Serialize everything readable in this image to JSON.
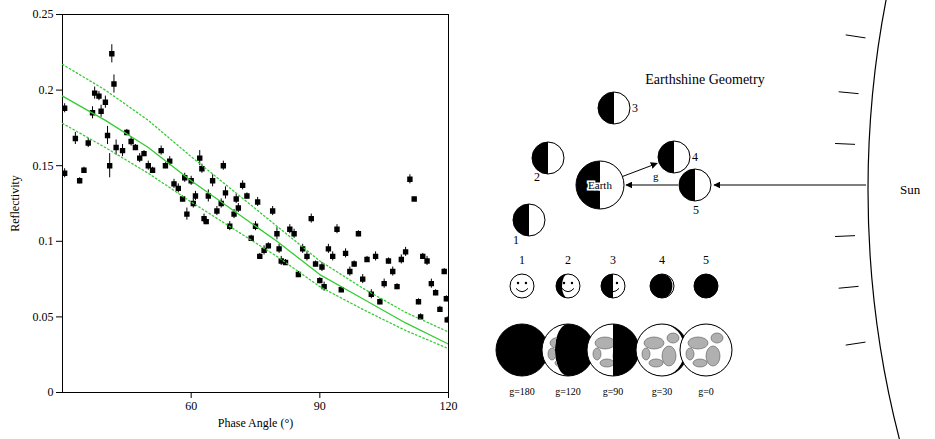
{
  "chart_data": {
    "type": "scatter",
    "xlabel": "Phase Angle (°)",
    "ylabel": "Reflectivity",
    "xlim": [
      30,
      120
    ],
    "xticks": [
      60,
      90,
      120
    ],
    "ylim": [
      0,
      0.25
    ],
    "yticks": [
      0,
      0.05,
      0.1,
      0.15,
      0.2,
      0.25
    ],
    "series": [
      {
        "type": "scatter",
        "color": "#000000",
        "marker": "square",
        "x": [
          30.5,
          30.5,
          33,
          34,
          35,
          36,
          37,
          37.5,
          38.5,
          39,
          40,
          40.5,
          41,
          41.5,
          42,
          42.5,
          44,
          45,
          46,
          47,
          48,
          49,
          50,
          51,
          53,
          54,
          55,
          56,
          57,
          58,
          58.5,
          59,
          60,
          60.5,
          61,
          62,
          62.5,
          63,
          63.5,
          64,
          65,
          66,
          67,
          67.5,
          68,
          69,
          70,
          70.5,
          71,
          72,
          73,
          74,
          75,
          75.5,
          76,
          77,
          78,
          79,
          80,
          80.5,
          81,
          82,
          83,
          84,
          85,
          86,
          87,
          88,
          89,
          90,
          90.5,
          91,
          92,
          93,
          94,
          95,
          96,
          97,
          98,
          99,
          100,
          101,
          102,
          103,
          104,
          105,
          106,
          107,
          108,
          109,
          110,
          111,
          112,
          113,
          113.5,
          114,
          115,
          116,
          117,
          118,
          119,
          119.5,
          119.7
        ],
        "values": [
          0.145,
          0.188,
          0.168,
          0.14,
          0.147,
          0.165,
          0.185,
          0.198,
          0.196,
          0.186,
          0.192,
          0.17,
          0.15,
          0.224,
          0.204,
          0.162,
          0.16,
          0.172,
          0.166,
          0.162,
          0.155,
          0.158,
          0.15,
          0.147,
          0.16,
          0.15,
          0.153,
          0.138,
          0.135,
          0.128,
          0.142,
          0.118,
          0.14,
          0.125,
          0.13,
          0.155,
          0.148,
          0.115,
          0.113,
          0.13,
          0.14,
          0.12,
          0.125,
          0.15,
          0.132,
          0.11,
          0.118,
          0.128,
          0.122,
          0.137,
          0.13,
          0.102,
          0.11,
          0.126,
          0.09,
          0.094,
          0.097,
          0.12,
          0.105,
          0.095,
          0.087,
          0.086,
          0.108,
          0.105,
          0.078,
          0.095,
          0.09,
          0.115,
          0.085,
          0.074,
          0.083,
          0.07,
          0.095,
          0.09,
          0.108,
          0.068,
          0.092,
          0.08,
          0.085,
          0.105,
          0.075,
          0.088,
          0.065,
          0.09,
          0.06,
          0.072,
          0.087,
          0.08,
          0.07,
          0.088,
          0.093,
          0.141,
          0.128,
          0.06,
          0.05,
          0.09,
          0.087,
          0.072,
          0.066,
          0.055,
          0.08,
          0.062,
          0.048
        ],
        "errors": [
          0.003,
          0.003,
          0.004,
          0.002,
          0.002,
          0.003,
          0.004,
          0.004,
          0.003,
          0.004,
          0.004,
          0.006,
          0.008,
          0.006,
          0.006,
          0.005,
          0.004,
          0.002,
          0.003,
          0.002,
          0.003,
          0.002,
          0.003,
          0.002,
          0.003,
          0.002,
          0.003,
          0.003,
          0.003,
          0.002,
          0.003,
          0.004,
          0.003,
          0.003,
          0.003,
          0.005,
          0.003,
          0.003,
          0.002,
          0.004,
          0.004,
          0.003,
          0.003,
          0.003,
          0.004,
          0.003,
          0.003,
          0.003,
          0.003,
          0.003,
          0.002,
          0.002,
          0.003,
          0.003,
          0.002,
          0.003,
          0.002,
          0.003,
          0.004,
          0.003,
          0.003,
          0.002,
          0.003,
          0.003,
          0.002,
          0.003,
          0.003,
          0.003,
          0.002,
          0.002,
          0.003,
          0.003,
          0.003,
          0.003,
          0.003,
          0.002,
          0.003,
          0.003,
          0.002,
          0.002,
          0.003,
          0.002,
          0.003,
          0.003,
          0.002,
          0.003,
          0.002,
          0.003,
          0.002,
          0.003,
          0.003,
          0.003,
          0.001,
          0.002,
          0.002,
          0.002,
          0.003,
          0.003,
          0.002,
          0.002,
          0.002,
          0.002,
          0.002
        ]
      },
      {
        "type": "line",
        "color": "#33cc33",
        "line_style": "solid",
        "x": [
          30,
          40,
          50,
          60,
          70,
          80,
          90,
          100,
          110,
          120
        ],
        "values": [
          0.196,
          0.18,
          0.162,
          0.14,
          0.12,
          0.1,
          0.078,
          0.062,
          0.046,
          0.032
        ]
      },
      {
        "type": "line",
        "color": "#33cc33",
        "line_style": "dotted",
        "x": [
          30,
          40,
          50,
          60,
          70,
          80,
          90,
          100,
          110,
          120
        ],
        "values": [
          0.217,
          0.2,
          0.18,
          0.156,
          0.133,
          0.11,
          0.087,
          0.069,
          0.053,
          0.04
        ]
      },
      {
        "type": "line",
        "color": "#33cc33",
        "line_style": "dotted",
        "x": [
          30,
          40,
          50,
          60,
          70,
          80,
          90,
          100,
          110,
          120
        ],
        "values": [
          0.178,
          0.162,
          0.145,
          0.126,
          0.108,
          0.09,
          0.07,
          0.055,
          0.041,
          0.029
        ]
      }
    ]
  },
  "diagram": {
    "title": "Earthshine Geometry",
    "earth_label": "Earth",
    "sun_label": "Sun",
    "angle_label": "g",
    "orbit_labels": [
      "1",
      "2",
      "3",
      "4",
      "5"
    ],
    "phases": [
      {
        "label": "1",
        "g": 180,
        "caption": "g=180"
      },
      {
        "label": "2",
        "g": 120,
        "caption": "g=120"
      },
      {
        "label": "3",
        "g": 90,
        "caption": "g=90"
      },
      {
        "label": "4",
        "g": 30,
        "caption": "g=30"
      },
      {
        "label": "5",
        "g": 0,
        "caption": "g=0"
      }
    ]
  }
}
